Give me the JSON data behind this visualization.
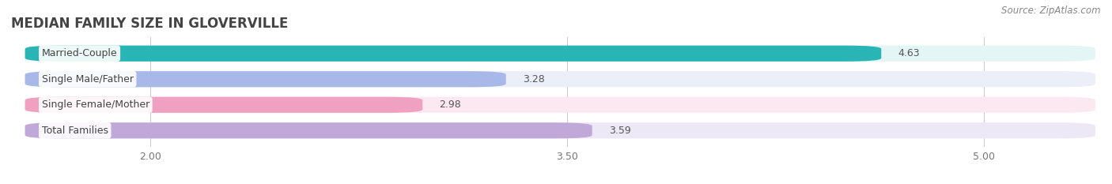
{
  "title": "MEDIAN FAMILY SIZE IN GLOVERVILLE",
  "source": "Source: ZipAtlas.com",
  "categories": [
    "Married-Couple",
    "Single Male/Father",
    "Single Female/Mother",
    "Total Families"
  ],
  "values": [
    4.63,
    3.28,
    2.98,
    3.59
  ],
  "bar_colors": [
    "#29b5b5",
    "#a8b8e8",
    "#f0a0c0",
    "#c0a8d8"
  ],
  "bar_bg_colors": [
    "#e4f5f5",
    "#eceef8",
    "#fce8f0",
    "#ede8f5"
  ],
  "xlim_min": 1.5,
  "xlim_max": 5.4,
  "xstart": 1.55,
  "xticks": [
    2.0,
    3.5,
    5.0
  ],
  "xtick_labels": [
    "2.00",
    "3.50",
    "5.00"
  ],
  "bar_height": 0.62,
  "value_fontsize": 9,
  "label_fontsize": 9,
  "title_fontsize": 12,
  "source_fontsize": 8.5,
  "bg_color": "#ffffff",
  "text_color": "#555555",
  "grid_color": "#cccccc"
}
